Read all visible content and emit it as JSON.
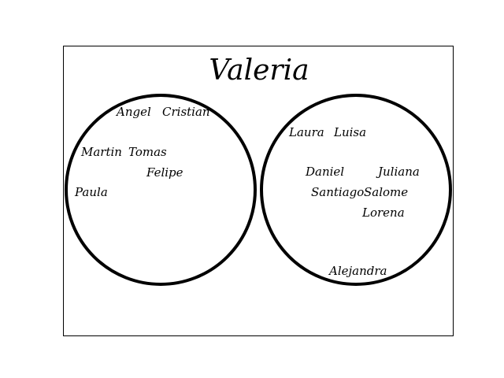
{
  "title": "Valeria",
  "colors": {
    "stroke": "#000000",
    "text": "#000000",
    "background": "#ffffff"
  },
  "groups": [
    {
      "names": [
        "Angel",
        "Cristian",
        "Martin",
        "Tomas",
        "Felipe",
        "Paula"
      ]
    },
    {
      "names": [
        "Laura",
        "Luisa",
        "Daniel",
        "Juliana",
        "Santiago",
        "Salome",
        "Lorena",
        "Alejandra"
      ]
    }
  ]
}
